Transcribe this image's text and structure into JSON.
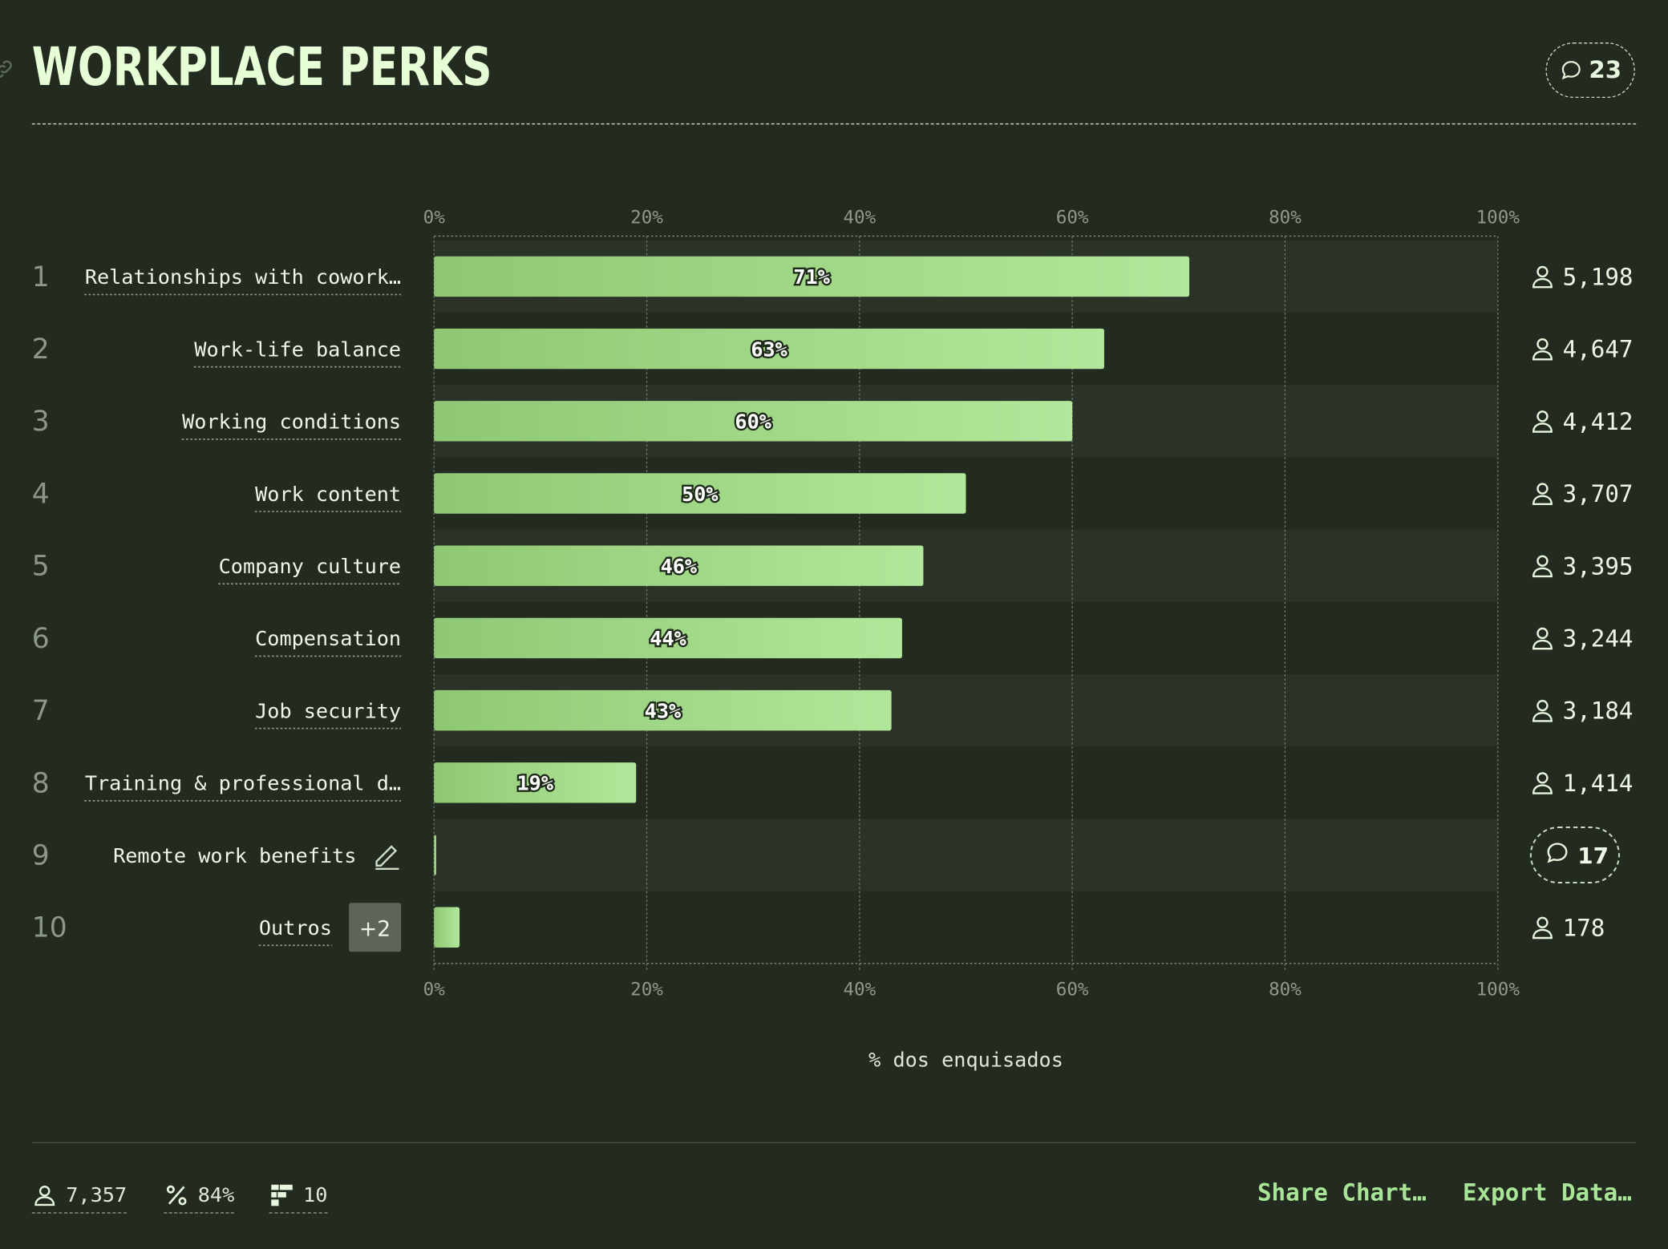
{
  "header": {
    "title": "WORKPLACE PERKS",
    "comment_count": "23"
  },
  "chart_data": {
    "type": "bar",
    "orientation": "horizontal",
    "title": "WORKPLACE PERKS",
    "xlabel": "% dos enquisados",
    "xlim": [
      0,
      100
    ],
    "x_ticks": [
      "0%",
      "20%",
      "40%",
      "60%",
      "80%",
      "100%"
    ],
    "grid": true,
    "rows": [
      {
        "rank": "1",
        "label": "Relationships with cowork…",
        "value": 71,
        "value_label": "71%",
        "respondents": "5,198"
      },
      {
        "rank": "2",
        "label": "Work-life balance",
        "value": 63,
        "value_label": "63%",
        "respondents": "4,647"
      },
      {
        "rank": "3",
        "label": "Working conditions",
        "value": 60,
        "value_label": "60%",
        "respondents": "4,412"
      },
      {
        "rank": "4",
        "label": "Work content",
        "value": 50,
        "value_label": "50%",
        "respondents": "3,707"
      },
      {
        "rank": "5",
        "label": "Company culture",
        "value": 46,
        "value_label": "46%",
        "respondents": "3,395"
      },
      {
        "rank": "6",
        "label": "Compensation",
        "value": 44,
        "value_label": "44%",
        "respondents": "3,244"
      },
      {
        "rank": "7",
        "label": "Job security",
        "value": 43,
        "value_label": "43%",
        "respondents": "3,184"
      },
      {
        "rank": "8",
        "label": "Training & professional d…",
        "value": 19,
        "value_label": "19%",
        "respondents": "1,414"
      },
      {
        "rank": "9",
        "label": "Remote work benefits",
        "value": 0.2,
        "value_label": "",
        "comment_count": "17",
        "editable": true
      },
      {
        "rank": "10",
        "label": "Outros",
        "badge": "+2",
        "value": 2.4,
        "value_label": "",
        "respondents": "178"
      }
    ],
    "colors": {
      "bar_start": "#8fc874",
      "bar_end": "#b1e79a",
      "band": "#2b3329",
      "background": "#232a20"
    }
  },
  "footer": {
    "respondents": "7,357",
    "percent": "84%",
    "options": "10",
    "share_label": "Share Chart…",
    "export_label": "Export Data…"
  }
}
